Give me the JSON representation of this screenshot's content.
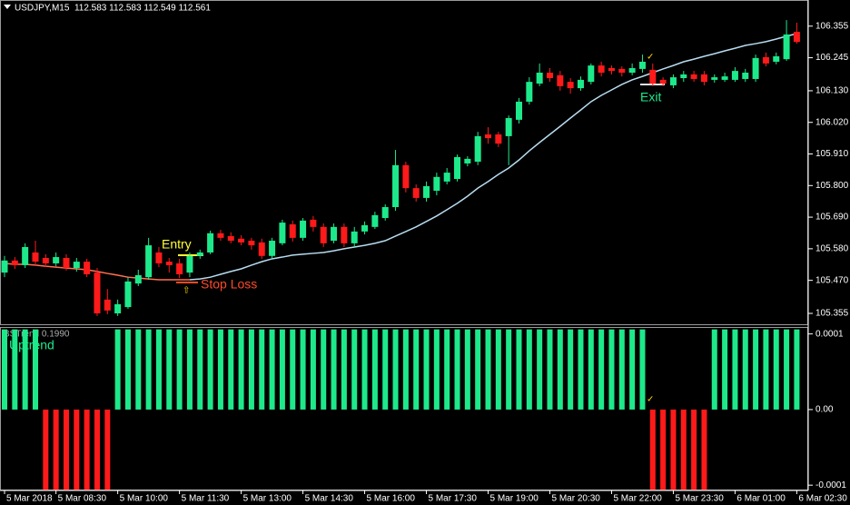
{
  "chart_data": [
    {
      "type": "candlestick",
      "title": "USDJPY,M15  112.583 112.583 112.549 112.561",
      "categories": [
        "5 Mar 2018",
        null,
        null,
        null,
        null,
        "5 Mar 08:30",
        null,
        null,
        null,
        null,
        null,
        "5 Mar 10:00",
        null,
        null,
        null,
        null,
        null,
        "5 Mar 11:30",
        null,
        null,
        null,
        null,
        null,
        "5 Mar 13:00",
        null,
        null,
        null,
        null,
        null,
        "5 Mar 14:30",
        null,
        null,
        null,
        null,
        null,
        "5 Mar 16:00",
        null,
        null,
        null,
        null,
        null,
        "5 Mar 17:30",
        null,
        null,
        null,
        null,
        null,
        "5 Mar 19:00",
        null,
        null,
        null,
        null,
        null,
        "5 Mar 20:30",
        null,
        null,
        null,
        null,
        null,
        "5 Mar 22:00",
        null,
        null,
        null,
        null,
        null,
        "5 Mar 23:30",
        null,
        null,
        null,
        null,
        null,
        "6 Mar 01:00",
        null,
        null,
        null,
        null,
        null,
        "6 Mar 02:30"
      ],
      "open": [
        105.497,
        105.539,
        105.523,
        105.567,
        105.548,
        105.529,
        105.548,
        105.513,
        105.535,
        105.497,
        105.403,
        105.355,
        105.377,
        105.459,
        105.481,
        105.567,
        105.535,
        105.529,
        105.497,
        105.555,
        105.567,
        105.634,
        105.624,
        105.615,
        105.608,
        105.602,
        105.555,
        105.599,
        105.665,
        105.618,
        105.681,
        105.656,
        105.608,
        105.656,
        105.599,
        105.64,
        105.656,
        105.687,
        105.725,
        105.871,
        105.791,
        105.757,
        105.782,
        105.814,
        105.823,
        105.877,
        105.883,
        105.978,
        105.978,
        105.972,
        106.029,
        106.092,
        106.155,
        106.193,
        106.184,
        106.161,
        106.139,
        106.161,
        106.218,
        106.209,
        106.206,
        106.193,
        106.206,
        106.203,
        106.168,
        106.149,
        106.174,
        106.187,
        106.187,
        106.168,
        106.168,
        106.168,
        106.171,
        106.171,
        106.247,
        106.231,
        106.24,
        106.335
      ],
      "high": [
        105.555,
        105.551,
        105.599,
        105.608,
        105.561,
        105.567,
        105.561,
        105.548,
        105.545,
        105.513,
        105.44,
        105.403,
        105.481,
        105.507,
        105.618,
        105.586,
        105.548,
        105.545,
        105.567,
        105.577,
        105.643,
        105.646,
        105.637,
        105.627,
        105.618,
        105.615,
        105.618,
        105.681,
        105.678,
        105.687,
        105.694,
        105.668,
        105.668,
        105.668,
        105.656,
        105.675,
        105.709,
        105.735,
        105.924,
        105.883,
        105.804,
        105.814,
        105.845,
        105.861,
        105.908,
        105.902,
        105.987,
        106.003,
        105.987,
        106.044,
        106.105,
        106.177,
        106.225,
        106.209,
        106.199,
        106.174,
        106.18,
        106.225,
        106.231,
        106.218,
        106.215,
        106.225,
        106.256,
        106.225,
        106.177,
        106.187,
        106.199,
        106.199,
        106.199,
        106.187,
        106.193,
        106.212,
        106.206,
        106.256,
        106.263,
        106.263,
        106.376,
        106.367
      ],
      "low": [
        105.481,
        105.51,
        105.513,
        105.523,
        105.516,
        105.519,
        105.504,
        105.5,
        105.481,
        105.346,
        105.352,
        105.346,
        105.371,
        105.45,
        105.472,
        105.516,
        105.497,
        105.478,
        105.481,
        105.545,
        105.561,
        105.608,
        105.599,
        105.592,
        105.577,
        105.545,
        105.545,
        105.592,
        105.605,
        105.608,
        105.64,
        105.586,
        105.599,
        105.586,
        105.586,
        105.63,
        105.649,
        105.678,
        105.712,
        105.776,
        105.744,
        105.744,
        105.766,
        105.804,
        105.814,
        105.867,
        105.871,
        105.946,
        105.934,
        105.871,
        106.016,
        106.082,
        106.146,
        106.161,
        106.13,
        106.12,
        106.13,
        106.152,
        106.18,
        106.187,
        106.18,
        106.184,
        106.193,
        106.146,
        106.146,
        106.139,
        106.161,
        106.161,
        106.149,
        106.158,
        106.161,
        106.161,
        106.161,
        106.161,
        106.215,
        106.222,
        106.234,
        106.294
      ],
      "close": [
        105.539,
        105.523,
        105.586,
        105.535,
        105.529,
        105.551,
        105.513,
        105.535,
        105.491,
        105.355,
        105.365,
        105.387,
        105.466,
        105.488,
        105.592,
        105.529,
        105.523,
        105.491,
        105.555,
        105.567,
        105.634,
        105.618,
        105.608,
        105.602,
        105.592,
        105.555,
        105.608,
        105.671,
        105.618,
        105.678,
        105.656,
        105.599,
        105.656,
        105.599,
        105.64,
        105.662,
        105.697,
        105.725,
        105.871,
        105.791,
        105.757,
        105.798,
        105.83,
        105.845,
        105.899,
        105.893,
        105.972,
        105.965,
        105.946,
        106.035,
        106.092,
        106.161,
        106.193,
        106.174,
        106.146,
        106.139,
        106.168,
        106.218,
        106.193,
        106.199,
        106.193,
        106.209,
        106.231,
        106.155,
        106.155,
        106.177,
        106.187,
        106.171,
        106.161,
        106.177,
        106.18,
        106.199,
        106.193,
        106.244,
        106.225,
        106.25,
        106.326,
        106.3
      ],
      "up_color": "#1de98b",
      "down_color": "#ff1a1a",
      "overlays": [
        {
          "color": "#ff7050",
          "values": [
            105.529,
            105.526,
            105.526,
            105.523,
            105.519,
            105.516,
            105.513,
            105.51,
            105.507,
            105.501,
            105.494,
            105.488,
            105.481,
            105.478,
            105.475,
            105.472,
            105.472,
            105.472,
            105.472,
            null,
            null,
            null,
            null,
            null,
            null,
            null,
            null,
            null,
            null,
            null,
            null,
            null,
            null,
            null,
            null,
            null,
            null,
            null,
            null,
            null,
            null,
            null,
            null,
            null,
            null,
            null,
            null,
            null,
            null,
            null,
            null,
            null,
            null,
            null,
            null,
            null,
            null,
            null,
            null,
            null,
            null,
            null,
            null,
            null,
            null,
            null,
            null,
            null,
            null,
            null,
            null,
            null,
            null,
            null,
            null,
            null,
            null,
            null
          ]
        },
        {
          "color": "#b8dcf0",
          "values": [
            null,
            null,
            null,
            null,
            null,
            null,
            null,
            null,
            null,
            null,
            null,
            null,
            null,
            null,
            null,
            null,
            null,
            null,
            105.472,
            105.475,
            105.481,
            105.491,
            105.501,
            105.51,
            105.523,
            105.535,
            105.545,
            105.551,
            105.558,
            105.561,
            105.564,
            105.567,
            105.573,
            105.58,
            105.586,
            105.592,
            105.599,
            105.608,
            105.624,
            105.64,
            105.656,
            105.675,
            105.694,
            105.716,
            105.738,
            105.763,
            105.791,
            105.814,
            105.839,
            105.861,
            105.889,
            105.921,
            105.95,
            105.978,
            106.006,
            106.035,
            106.063,
            106.092,
            106.114,
            106.133,
            106.152,
            106.168,
            106.18,
            106.193,
            106.206,
            106.218,
            106.231,
            106.24,
            106.25,
            106.259,
            106.269,
            106.278,
            106.288,
            106.294,
            106.301,
            106.31,
            106.32,
            106.329
          ]
        }
      ],
      "annotations": [
        {
          "text": "Entry",
          "color": "#ffff33"
        },
        {
          "text": "Stop Loss",
          "color": "#ff4a2a"
        },
        {
          "text": "Exit",
          "color": "#1de98b"
        },
        {
          "text": "✓",
          "color": "#ffd700"
        },
        {
          "text": "⇧",
          "color": "#ffd700"
        }
      ],
      "ylim": [
        105.314,
        106.446
      ],
      "yticks": [
        106.355,
        106.245,
        {
          "value": 106.13,
          "label": "106.130"
        },
        {
          "value": 106.02,
          "label": "106.020"
        },
        {
          "value": 105.91,
          "label": "105.910"
        },
        {
          "value": 105.8,
          "label": "105.800"
        },
        {
          "value": 105.69,
          "label": "105.690"
        },
        {
          "value": 105.58,
          "label": "105.580"
        },
        {
          "value": 105.47,
          "label": "105.470"
        },
        105.355
      ]
    },
    {
      "type": "bar",
      "title": "BSTrend 0.1990",
      "label": "Uptrend",
      "label_color": "#1de98b",
      "values": [
        0.000106,
        0.000106,
        0.000106,
        0.000106,
        -0.000106,
        -0.000106,
        -0.000106,
        -0.000106,
        -0.000106,
        -0.000106,
        -0.000106,
        0.000106,
        0.000106,
        0.000106,
        0.000106,
        0.000106,
        0.000106,
        0.000106,
        0.000106,
        0.000106,
        0.000106,
        0.000106,
        0.000106,
        0.000106,
        0.000106,
        0.000106,
        0.000106,
        0.000106,
        0.000106,
        0.000106,
        0.000106,
        0.000106,
        0.000106,
        0.000106,
        0.000106,
        0.000106,
        0.000106,
        0.000106,
        0.000106,
        0.000106,
        0.000106,
        0.000106,
        0.000106,
        0.000106,
        0.000106,
        0.000106,
        0.000106,
        0.000106,
        0.000106,
        0.000106,
        0.000106,
        0.000106,
        0.000106,
        0.000106,
        0.000106,
        0.000106,
        0.000106,
        0.000106,
        0.000106,
        0.000106,
        0.000106,
        0.000106,
        0.000106,
        -0.000106,
        -0.000106,
        -0.000106,
        -0.000106,
        -0.000106,
        -0.000106,
        0.000106,
        0.000106,
        0.000106,
        0.000106,
        0.000106,
        0.000106,
        0.000106,
        0.000106,
        0.000106
      ],
      "up_color": "#1de98b",
      "down_color": "#ff1a1a",
      "annotations": [
        {
          "text": "✓",
          "color": "#ffd700"
        }
      ],
      "ylim": [
        -0.000107,
        0.000108
      ],
      "yticks": [
        0.0001,
        {
          "value": 0,
          "label": "0.00"
        },
        -0.0001
      ]
    }
  ]
}
